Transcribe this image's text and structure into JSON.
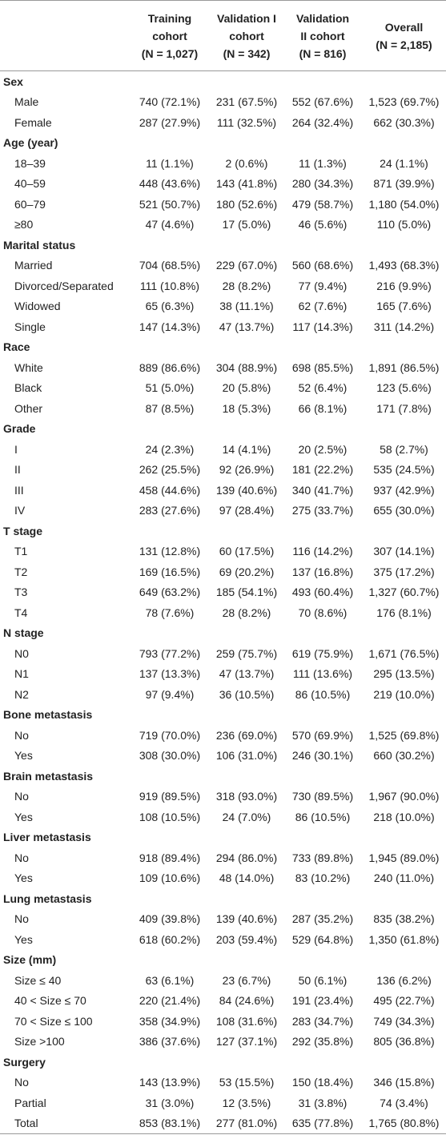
{
  "table": {
    "columns": [
      [
        "Training",
        "cohort",
        "(N = 1,027)"
      ],
      [
        "Validation I",
        "cohort",
        "(N = 342)"
      ],
      [
        "Validation",
        "II cohort",
        "(N = 816)"
      ],
      [
        "Overall",
        "(N = 2,185)"
      ]
    ],
    "sections": [
      {
        "title": "Sex",
        "rows": [
          [
            "Male",
            "740 (72.1%)",
            "231 (67.5%)",
            "552 (67.6%)",
            "1,523 (69.7%)"
          ],
          [
            "Female",
            "287 (27.9%)",
            "111 (32.5%)",
            "264 (32.4%)",
            "662 (30.3%)"
          ]
        ]
      },
      {
        "title": "Age (year)",
        "rows": [
          [
            "18–39",
            "11 (1.1%)",
            "2 (0.6%)",
            "11 (1.3%)",
            "24 (1.1%)"
          ],
          [
            "40–59",
            "448 (43.6%)",
            "143 (41.8%)",
            "280 (34.3%)",
            "871 (39.9%)"
          ],
          [
            "60–79",
            "521 (50.7%)",
            "180 (52.6%)",
            "479 (58.7%)",
            "1,180 (54.0%)"
          ],
          [
            "≥80",
            "47 (4.6%)",
            "17 (5.0%)",
            "46 (5.6%)",
            "110 (5.0%)"
          ]
        ]
      },
      {
        "title": "Marital status",
        "rows": [
          [
            "Married",
            "704 (68.5%)",
            "229 (67.0%)",
            "560 (68.6%)",
            "1,493 (68.3%)"
          ],
          [
            "Divorced/Separated",
            "111 (10.8%)",
            "28 (8.2%)",
            "77 (9.4%)",
            "216 (9.9%)"
          ],
          [
            "Widowed",
            "65 (6.3%)",
            "38 (11.1%)",
            "62 (7.6%)",
            "165 (7.6%)"
          ],
          [
            "Single",
            "147 (14.3%)",
            "47 (13.7%)",
            "117 (14.3%)",
            "311 (14.2%)"
          ]
        ]
      },
      {
        "title": "Race",
        "rows": [
          [
            "White",
            "889 (86.6%)",
            "304 (88.9%)",
            "698 (85.5%)",
            "1,891 (86.5%)"
          ],
          [
            "Black",
            "51 (5.0%)",
            "20 (5.8%)",
            "52 (6.4%)",
            "123 (5.6%)"
          ],
          [
            "Other",
            "87 (8.5%)",
            "18 (5.3%)",
            "66 (8.1%)",
            "171 (7.8%)"
          ]
        ]
      },
      {
        "title": "Grade",
        "rows": [
          [
            "I",
            "24 (2.3%)",
            "14 (4.1%)",
            "20 (2.5%)",
            "58 (2.7%)"
          ],
          [
            "II",
            "262 (25.5%)",
            "92 (26.9%)",
            "181 (22.2%)",
            "535 (24.5%)"
          ],
          [
            "III",
            "458 (44.6%)",
            "139 (40.6%)",
            "340 (41.7%)",
            "937 (42.9%)"
          ],
          [
            "IV",
            "283 (27.6%)",
            "97 (28.4%)",
            "275 (33.7%)",
            "655 (30.0%)"
          ]
        ]
      },
      {
        "title": "T stage",
        "rows": [
          [
            "T1",
            "131 (12.8%)",
            "60 (17.5%)",
            "116 (14.2%)",
            "307 (14.1%)"
          ],
          [
            "T2",
            "169 (16.5%)",
            "69 (20.2%)",
            "137 (16.8%)",
            "375 (17.2%)"
          ],
          [
            "T3",
            "649 (63.2%)",
            "185 (54.1%)",
            "493 (60.4%)",
            "1,327 (60.7%)"
          ],
          [
            "T4",
            "78 (7.6%)",
            "28 (8.2%)",
            "70 (8.6%)",
            "176 (8.1%)"
          ]
        ]
      },
      {
        "title": "N stage",
        "rows": [
          [
            "N0",
            "793 (77.2%)",
            "259 (75.7%)",
            "619 (75.9%)",
            "1,671 (76.5%)"
          ],
          [
            "N1",
            "137 (13.3%)",
            "47 (13.7%)",
            "111 (13.6%)",
            "295 (13.5%)"
          ],
          [
            "N2",
            "97 (9.4%)",
            "36 (10.5%)",
            "86 (10.5%)",
            "219 (10.0%)"
          ]
        ]
      },
      {
        "title": "Bone metastasis",
        "rows": [
          [
            "No",
            "719 (70.0%)",
            "236 (69.0%)",
            "570 (69.9%)",
            "1,525 (69.8%)"
          ],
          [
            "Yes",
            "308 (30.0%)",
            "106 (31.0%)",
            "246 (30.1%)",
            "660 (30.2%)"
          ]
        ]
      },
      {
        "title": "Brain metastasis",
        "rows": [
          [
            "No",
            "919 (89.5%)",
            "318 (93.0%)",
            "730 (89.5%)",
            "1,967 (90.0%)"
          ],
          [
            "Yes",
            "108 (10.5%)",
            "24 (7.0%)",
            "86 (10.5%)",
            "218 (10.0%)"
          ]
        ]
      },
      {
        "title": "Liver metastasis",
        "rows": [
          [
            "No",
            "918 (89.4%)",
            "294 (86.0%)",
            "733 (89.8%)",
            "1,945 (89.0%)"
          ],
          [
            "Yes",
            "109 (10.6%)",
            "48 (14.0%)",
            "83 (10.2%)",
            "240 (11.0%)"
          ]
        ]
      },
      {
        "title": "Lung metastasis",
        "rows": [
          [
            "No",
            "409 (39.8%)",
            "139 (40.6%)",
            "287 (35.2%)",
            "835 (38.2%)"
          ],
          [
            "Yes",
            "618 (60.2%)",
            "203 (59.4%)",
            "529 (64.8%)",
            "1,350 (61.8%)"
          ]
        ]
      },
      {
        "title": "Size (mm)",
        "rows": [
          [
            "Size ≤ 40",
            "63 (6.1%)",
            "23 (6.7%)",
            "50 (6.1%)",
            "136 (6.2%)"
          ],
          [
            "40 < Size ≤ 70",
            "220 (21.4%)",
            "84 (24.6%)",
            "191 (23.4%)",
            "495 (22.7%)"
          ],
          [
            "70 < Size ≤ 100",
            "358 (34.9%)",
            "108 (31.6%)",
            "283 (34.7%)",
            "749 (34.3%)"
          ],
          [
            "Size >100",
            "386 (37.6%)",
            "127 (37.1%)",
            "292 (35.8%)",
            "805 (36.8%)"
          ]
        ]
      },
      {
        "title": "Surgery",
        "rows": [
          [
            "No",
            "143 (13.9%)",
            "53 (15.5%)",
            "150 (18.4%)",
            "346 (15.8%)"
          ],
          [
            "Partial",
            "31 (3.0%)",
            "12 (3.5%)",
            "31 (3.8%)",
            "74 (3.4%)"
          ],
          [
            "Total",
            "853 (83.1%)",
            "277 (81.0%)",
            "635 (77.8%)",
            "1,765 (80.8%)"
          ]
        ]
      }
    ]
  }
}
